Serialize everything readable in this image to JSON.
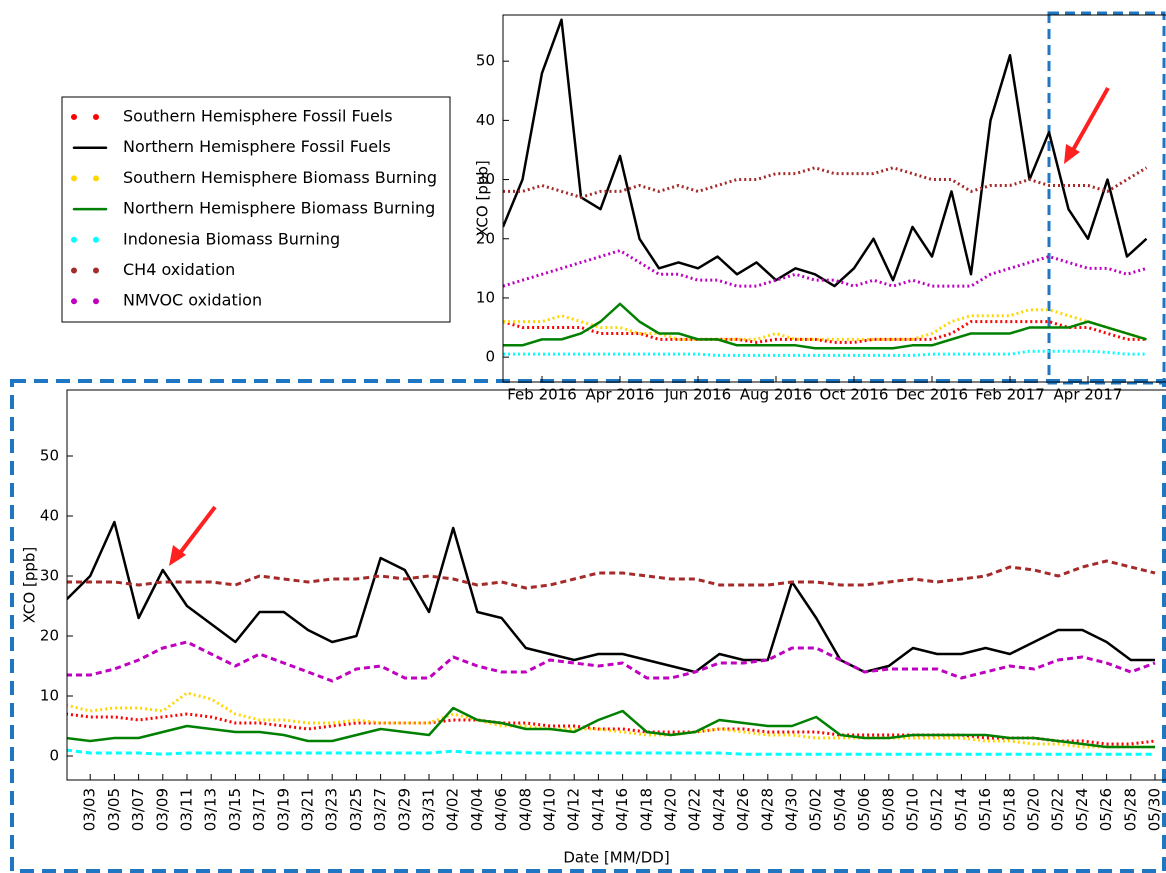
{
  "chart_data": [
    {
      "type": "line",
      "ylabel": "XCO [ppb]",
      "categories": [
        null,
        null,
        "Feb 2016",
        null,
        null,
        null,
        "Apr 2016",
        null,
        null,
        null,
        "Jun 2016",
        null,
        null,
        null,
        "Aug 2016",
        null,
        null,
        null,
        "Oct 2016",
        null,
        null,
        null,
        "Dec 2016",
        null,
        null,
        null,
        "Feb 2017",
        null,
        null,
        null,
        "Apr 2017",
        null,
        null,
        null
      ],
      "ylim": [
        -4.2,
        57.8
      ],
      "yticks": [
        0,
        10,
        20,
        30,
        40,
        50
      ],
      "legend": "outside-left",
      "series": [
        {
          "name": "Southern Hemisphere Fossil Fuels",
          "color": "#ff0000",
          "style": "dotted",
          "values": [
            6,
            5,
            5,
            5,
            5,
            4,
            4,
            4,
            3,
            3,
            3,
            3,
            3,
            2.5,
            3,
            3,
            3,
            2.5,
            2.5,
            3,
            3,
            3,
            3,
            4,
            6,
            6,
            6,
            6,
            6,
            5,
            5,
            4,
            3,
            3
          ]
        },
        {
          "name": "Northern Hemisphere Fossil Fuels",
          "color": "#000000",
          "style": "solid",
          "values": [
            22,
            30,
            48,
            57,
            27,
            25,
            34,
            20,
            15,
            16,
            15,
            17,
            14,
            16,
            13,
            15,
            14,
            12,
            15,
            20,
            13,
            22,
            17,
            28,
            14,
            40,
            51,
            30,
            38,
            25,
            20,
            30,
            17,
            20
          ]
        },
        {
          "name": "Southern Hemisphere Biomass Burning",
          "color": "#ffd700",
          "style": "dotted",
          "values": [
            6,
            6,
            6,
            7,
            6,
            5,
            5,
            4,
            4,
            3,
            3,
            3,
            3,
            3,
            4,
            3,
            3,
            3,
            3,
            3,
            3,
            3,
            4,
            6,
            7,
            7,
            7,
            8,
            8,
            7,
            6,
            5,
            4,
            3
          ]
        },
        {
          "name": "Northern Hemisphere Biomass Burning",
          "color": "#008000",
          "style": "solid",
          "values": [
            2,
            2,
            3,
            3,
            4,
            6,
            9,
            6,
            4,
            4,
            3,
            3,
            2,
            2,
            2,
            2,
            1.5,
            1.5,
            1.5,
            1.5,
            1.5,
            2,
            2,
            3,
            4,
            4,
            4,
            5,
            5,
            5,
            6,
            5,
            4,
            3
          ]
        },
        {
          "name": "Indonesia Biomass Burning",
          "color": "#00ffff",
          "style": "dotted",
          "values": [
            0.5,
            0.5,
            0.5,
            0.5,
            0.5,
            0.5,
            0.5,
            0.5,
            0.5,
            0.5,
            0.5,
            0.3,
            0.3,
            0.3,
            0.3,
            0.3,
            0.3,
            0.3,
            0.3,
            0.3,
            0.3,
            0.3,
            0.5,
            0.5,
            0.5,
            0.5,
            0.5,
            1,
            1,
            1,
            1,
            0.8,
            0.5,
            0.5
          ]
        },
        {
          "name": "CH4 oxidation",
          "color": "#a52a2a",
          "style": "dotted",
          "values": [
            28,
            28,
            29,
            28,
            27,
            28,
            28,
            29,
            28,
            29,
            28,
            29,
            30,
            30,
            31,
            31,
            32,
            31,
            31,
            31,
            32,
            31,
            30,
            30,
            28,
            29,
            29,
            30,
            29,
            29,
            29,
            28,
            30,
            32
          ]
        },
        {
          "name": "NMVOC oxidation",
          "color": "#bf00bf",
          "style": "dotted",
          "values": [
            12,
            13,
            14,
            15,
            16,
            17,
            18,
            16,
            14,
            14,
            13,
            13,
            12,
            12,
            13,
            14,
            13,
            13,
            12,
            13,
            12,
            13,
            12,
            12,
            12,
            14,
            15,
            16,
            17,
            16,
            15,
            15,
            14,
            15
          ]
        }
      ]
    },
    {
      "type": "line",
      "ylabel": "XCO [ppb]",
      "xlabel": "Date [MM/DD]",
      "categories": [
        null,
        "03/03",
        "03/05",
        "03/07",
        "03/09",
        "03/11",
        "03/13",
        "03/15",
        "03/17",
        "03/19",
        "03/21",
        "03/23",
        "03/25",
        "03/27",
        "03/29",
        "03/31",
        "04/02",
        "04/04",
        "04/06",
        "04/08",
        "04/10",
        "04/12",
        "04/14",
        "04/16",
        "04/18",
        "04/20",
        "04/22",
        "04/24",
        "04/26",
        "04/28",
        "04/30",
        "05/02",
        "05/04",
        "05/06",
        "05/08",
        "05/10",
        "05/12",
        "05/14",
        "05/16",
        "05/18",
        "05/20",
        "05/22",
        "05/24",
        "05/26",
        "05/28",
        "05/30"
      ],
      "ylim": [
        -4,
        61
      ],
      "yticks": [
        0,
        10,
        20,
        30,
        40,
        50
      ],
      "series": [
        {
          "color": "#ff0000",
          "style": "dotted",
          "values": [
            7,
            6.5,
            6.5,
            6,
            6.5,
            7,
            6.5,
            5.5,
            5.5,
            5,
            4.5,
            5,
            5.5,
            5.5,
            5.5,
            5.5,
            6,
            6,
            5.5,
            5.5,
            5,
            5,
            4.5,
            4.5,
            4,
            4,
            4,
            4.5,
            4.5,
            4,
            4,
            4,
            3.5,
            3.5,
            3.5,
            3.5,
            3.5,
            3.5,
            3,
            3,
            3,
            2.5,
            2.5,
            2,
            2,
            2.5
          ]
        },
        {
          "color": "#000000",
          "style": "solid",
          "values": [
            26,
            30,
            39,
            23,
            31,
            25,
            22,
            19,
            24,
            24,
            21,
            19,
            20,
            33,
            31,
            24,
            38,
            24,
            23,
            18,
            17,
            16,
            17,
            17,
            16,
            15,
            14,
            17,
            16,
            16,
            29,
            23,
            16,
            14,
            15,
            18,
            17,
            17,
            18,
            17,
            19,
            21,
            21,
            19,
            16,
            16
          ]
        },
        {
          "color": "#ffd700",
          "style": "dotted",
          "values": [
            8.5,
            7.5,
            8,
            8,
            7.5,
            10.5,
            9.5,
            7,
            6,
            6,
            5.5,
            5.5,
            6,
            5.5,
            5.5,
            5.5,
            7,
            6,
            5,
            5,
            4.5,
            4.5,
            4.5,
            4,
            3.5,
            3.5,
            4,
            4.5,
            4,
            3.5,
            3.5,
            3,
            3,
            3,
            3,
            3,
            3,
            3,
            2.5,
            2.5,
            2,
            2,
            1.5,
            1.5,
            1.5,
            1.5
          ]
        },
        {
          "color": "#008000",
          "style": "solid",
          "values": [
            3,
            2.5,
            3,
            3,
            4,
            5,
            4.5,
            4,
            4,
            3.5,
            2.5,
            2.5,
            3.5,
            4.5,
            4,
            3.5,
            8,
            6,
            5.5,
            4.5,
            4.5,
            4,
            6,
            7.5,
            4,
            3.5,
            4,
            6,
            5.5,
            5,
            5,
            6.5,
            3.5,
            3,
            3,
            3.5,
            3.5,
            3.5,
            3.5,
            3,
            3,
            2.5,
            2,
            1.5,
            1.5,
            1.5
          ]
        },
        {
          "color": "#00ffff",
          "style": "dashed",
          "values": [
            1,
            0.5,
            0.5,
            0.5,
            0.3,
            0.5,
            0.5,
            0.5,
            0.5,
            0.5,
            0.5,
            0.5,
            0.5,
            0.5,
            0.5,
            0.5,
            0.8,
            0.5,
            0.5,
            0.5,
            0.5,
            0.5,
            0.5,
            0.5,
            0.5,
            0.5,
            0.5,
            0.5,
            0.3,
            0.3,
            0.3,
            0.3,
            0.3,
            0.3,
            0.3,
            0.3,
            0.3,
            0.3,
            0.3,
            0.3,
            0.3,
            0.3,
            0.3,
            0.3,
            0.3,
            0.3
          ]
        },
        {
          "color": "#a52a2a",
          "style": "dashed",
          "values": [
            29,
            29,
            29,
            28.5,
            29,
            29,
            29,
            28.5,
            30,
            29.5,
            29,
            29.5,
            29.5,
            30,
            29.5,
            30,
            29.5,
            28.5,
            29,
            28,
            28.5,
            29.5,
            30.5,
            30.5,
            30,
            29.5,
            29.5,
            28.5,
            28.5,
            28.5,
            29,
            29,
            28.5,
            28.5,
            29,
            29.5,
            29,
            29.5,
            30,
            31.5,
            31,
            30,
            31.5,
            32.5,
            31.5,
            30.5
          ]
        },
        {
          "color": "#bf00bf",
          "style": "dashed",
          "values": [
            13.5,
            13.5,
            14.5,
            16,
            18,
            19,
            17,
            15,
            17,
            15.5,
            14,
            12.5,
            14.5,
            15,
            13,
            13,
            16.5,
            15,
            14,
            14,
            16,
            15.5,
            15,
            15.5,
            13,
            13,
            14,
            15.5,
            15.5,
            16,
            18,
            18,
            16,
            14,
            14.5,
            14.5,
            14.5,
            13,
            14,
            15,
            14.5,
            16,
            16.5,
            15.5,
            14,
            15.5
          ]
        }
      ]
    }
  ]
}
